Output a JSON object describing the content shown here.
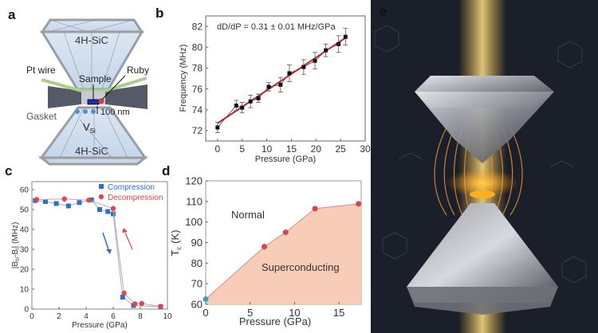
{
  "panels": {
    "a": {
      "letter": "a",
      "labels": {
        "top_anvil": "4H-SiC",
        "bottom_anvil": "4H-SiC",
        "pt_wire": "Pt wire",
        "ruby": "Ruby",
        "sample": "Sample",
        "gasket": "Gasket",
        "vsi": "V",
        "vsi_sub": "Si",
        "distance": "100 nm"
      }
    },
    "b": {
      "letter": "b"
    },
    "c": {
      "letter": "c"
    },
    "d": {
      "letter": "d"
    },
    "e": {
      "letter": "e"
    }
  },
  "colors": {
    "compression": "#2f6fc4",
    "decompression": "#e0454f",
    "fit": "#c0282d",
    "phase_fill": "#f7cdb8",
    "phase_point": "#d9434d",
    "ambient_point": "#3aa0c8"
  },
  "chart_data": [
    {
      "id": "b",
      "type": "scatter",
      "title": "",
      "annotation": "dD/dP = 0.31 ± 0.01 MHz/GPa",
      "xlabel": "Pressure (GPa)",
      "ylabel": "Frequency (MHz)",
      "xlim": [
        -2.4,
        30
      ],
      "ylim": [
        71,
        83
      ],
      "xticks": [
        0,
        5,
        10,
        15,
        20,
        25,
        30
      ],
      "yticks": [
        72,
        74,
        76,
        78,
        80,
        82
      ],
      "grid": false,
      "series": [
        {
          "x": [
            0,
            3.8,
            5,
            6.7,
            8.3,
            10.4,
            12.8,
            14.6,
            17.5,
            19.8,
            22,
            24.6,
            26
          ],
          "y": [
            72.3,
            74.4,
            74.2,
            74.8,
            75.1,
            76.2,
            76.4,
            77.5,
            78.1,
            78.7,
            79.7,
            80.3,
            81.0
          ],
          "err": [
            0.5,
            0.5,
            0.5,
            0.6,
            0.4,
            0.4,
            0.7,
            0.8,
            0.7,
            0.8,
            0.6,
            0.8,
            0.8
          ]
        }
      ],
      "fit": {
        "x": [
          0,
          26
        ],
        "y": [
          72.7,
          80.9
        ]
      }
    },
    {
      "id": "c",
      "type": "line",
      "xlabel": "Pressure (GPa)",
      "ylabel": "|B_III - B_I| (MHz)",
      "ylabel_parts": {
        "open": "|B",
        "sub1": "III",
        "mid": "-B",
        "sub2": "I",
        "close": "| (MHz)"
      },
      "xlim": [
        0,
        10
      ],
      "ylim": [
        0,
        64
      ],
      "xticks": [
        0,
        2,
        4,
        6,
        8,
        10
      ],
      "yticks": [
        0,
        10,
        20,
        30,
        40,
        50,
        60
      ],
      "grid": false,
      "legend_position": "top-right",
      "series": [
        {
          "name": "Compression",
          "marker": "square",
          "x": [
            0.25,
            1,
            1.8,
            2.7,
            3.5,
            4.4,
            5,
            5.6,
            6,
            6.7,
            7.5,
            9.5
          ],
          "y": [
            54.5,
            54,
            53,
            51.8,
            53.5,
            54.8,
            50,
            49,
            47.8,
            6,
            1.8,
            1.2
          ]
        },
        {
          "name": "Decompression",
          "marker": "circle",
          "x": [
            0.35,
            2.4,
            4.2,
            6,
            6.8,
            7.6,
            8.1,
            9.5
          ],
          "y": [
            55,
            55.3,
            54.7,
            50.5,
            8,
            2.6,
            2.8,
            1.3
          ]
        }
      ]
    },
    {
      "id": "d",
      "type": "area",
      "xlabel": "Pressure (GPa)",
      "ylabel": "T_c (K)",
      "ylabel_parts": {
        "main": "T",
        "sub": "c",
        "unit": " (K)"
      },
      "xlim": [
        0,
        17.5
      ],
      "ylim": [
        60,
        120
      ],
      "xticks": [
        0,
        5,
        10,
        15
      ],
      "yticks": [
        60,
        70,
        80,
        90,
        100,
        110,
        120
      ],
      "grid": false,
      "region_labels": {
        "upper": "Normal",
        "lower": "Superconducting"
      },
      "series": [
        {
          "x": [
            0,
            6.6,
            9,
            12.3,
            17.2
          ],
          "y": [
            62.5,
            88,
            95,
            106.5,
            108.8
          ]
        }
      ]
    }
  ]
}
